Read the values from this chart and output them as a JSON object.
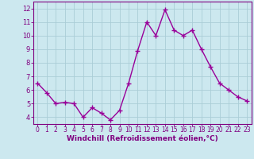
{
  "x": [
    0,
    1,
    2,
    3,
    4,
    5,
    6,
    7,
    8,
    9,
    10,
    11,
    12,
    13,
    14,
    15,
    16,
    17,
    18,
    19,
    20,
    21,
    22,
    23
  ],
  "y": [
    6.5,
    5.8,
    5.0,
    5.1,
    5.0,
    4.0,
    4.7,
    4.3,
    3.8,
    4.5,
    6.5,
    8.9,
    11.0,
    10.0,
    11.9,
    10.4,
    10.0,
    10.4,
    9.0,
    7.7,
    6.5,
    6.0,
    5.5,
    5.2
  ],
  "line_color": "#990099",
  "marker": "+",
  "marker_size": 4,
  "line_width": 1.0,
  "bg_color": "#cce8ef",
  "grid_color": "#aacdd6",
  "axis_label_color": "#800080",
  "tick_color": "#800080",
  "xlabel": "Windchill (Refroidissement éolien,°C)",
  "xlabel_fontsize": 6.5,
  "ytick_labels": [
    "4",
    "5",
    "6",
    "7",
    "8",
    "9",
    "10",
    "11",
    "12"
  ],
  "ytick_values": [
    4,
    5,
    6,
    7,
    8,
    9,
    10,
    11,
    12
  ],
  "ylim": [
    3.5,
    12.5
  ],
  "xlim": [
    -0.5,
    23.5
  ],
  "xtick_labels": [
    "0",
    "1",
    "2",
    "3",
    "4",
    "5",
    "6",
    "7",
    "8",
    "9",
    "10",
    "11",
    "12",
    "13",
    "14",
    "15",
    "16",
    "17",
    "18",
    "19",
    "20",
    "21",
    "22",
    "23"
  ],
  "border_color": "#800080",
  "tick_fontsize": 5.5,
  "ytick_fontsize": 6.0
}
